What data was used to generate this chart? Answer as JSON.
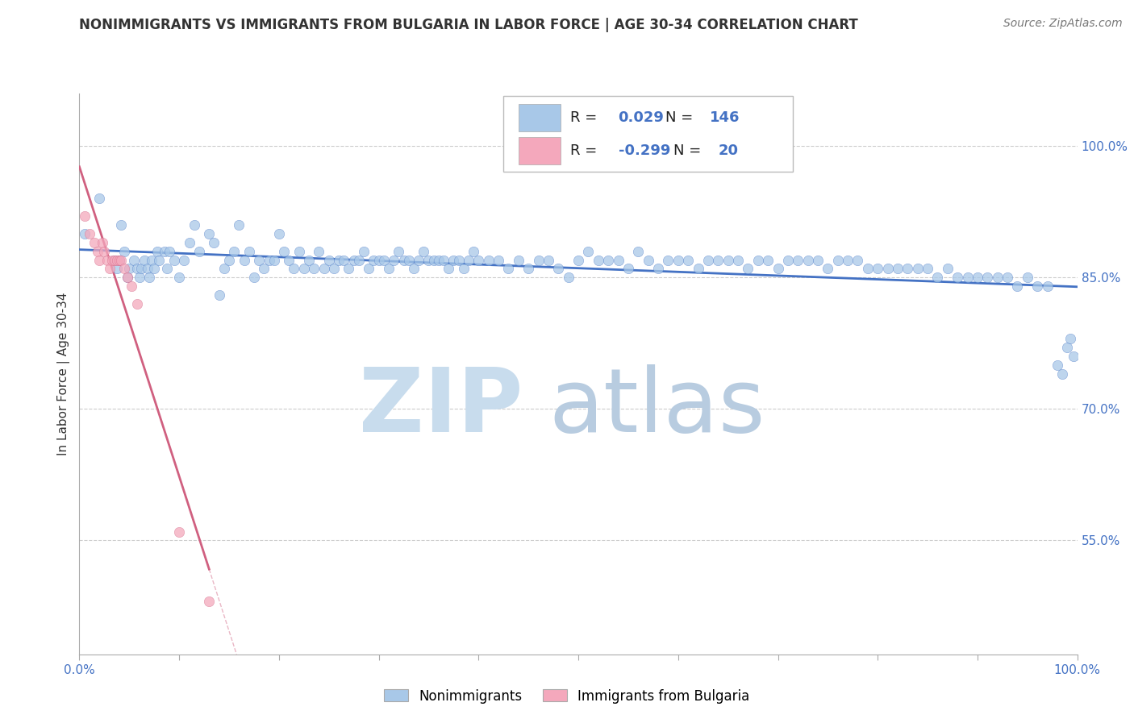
{
  "title": "NONIMMIGRANTS VS IMMIGRANTS FROM BULGARIA IN LABOR FORCE | AGE 30-34 CORRELATION CHART",
  "source": "Source: ZipAtlas.com",
  "ylabel": "In Labor Force | Age 30-34",
  "xlim": [
    0.0,
    1.0
  ],
  "ylim": [
    0.42,
    1.06
  ],
  "yticks": [
    0.55,
    0.7,
    0.85,
    1.0
  ],
  "ytick_labels": [
    "55.0%",
    "70.0%",
    "85.0%",
    "100.0%"
  ],
  "xtick_left_label": "0.0%",
  "xtick_right_label": "100.0%",
  "nonimm_R": 0.029,
  "nonimm_N": 146,
  "imm_R": -0.299,
  "imm_N": 20,
  "nonimm_color": "#a8c8e8",
  "nonimm_line_color": "#4472c4",
  "imm_color": "#f4a8bc",
  "imm_line_color": "#d06080",
  "watermark_zip_color": "#c8dced",
  "watermark_atlas_color": "#b8cce0",
  "background_color": "#ffffff",
  "legend_box_color": "#e8e8e8",
  "nonimm_x": [
    0.005,
    0.02,
    0.035,
    0.038,
    0.04,
    0.042,
    0.045,
    0.048,
    0.05,
    0.055,
    0.058,
    0.06,
    0.062,
    0.065,
    0.068,
    0.07,
    0.072,
    0.075,
    0.078,
    0.08,
    0.085,
    0.088,
    0.09,
    0.095,
    0.1,
    0.105,
    0.11,
    0.115,
    0.12,
    0.13,
    0.135,
    0.14,
    0.145,
    0.15,
    0.155,
    0.16,
    0.165,
    0.17,
    0.175,
    0.18,
    0.185,
    0.19,
    0.195,
    0.2,
    0.205,
    0.21,
    0.215,
    0.22,
    0.225,
    0.23,
    0.235,
    0.24,
    0.245,
    0.25,
    0.255,
    0.26,
    0.265,
    0.27,
    0.275,
    0.28,
    0.285,
    0.29,
    0.295,
    0.3,
    0.305,
    0.31,
    0.315,
    0.32,
    0.325,
    0.33,
    0.335,
    0.34,
    0.345,
    0.35,
    0.355,
    0.36,
    0.365,
    0.37,
    0.375,
    0.38,
    0.385,
    0.39,
    0.395,
    0.4,
    0.41,
    0.42,
    0.43,
    0.44,
    0.45,
    0.46,
    0.47,
    0.48,
    0.49,
    0.5,
    0.51,
    0.52,
    0.53,
    0.54,
    0.55,
    0.56,
    0.57,
    0.58,
    0.59,
    0.6,
    0.61,
    0.62,
    0.63,
    0.64,
    0.65,
    0.66,
    0.67,
    0.68,
    0.69,
    0.7,
    0.71,
    0.72,
    0.73,
    0.74,
    0.75,
    0.76,
    0.77,
    0.78,
    0.79,
    0.8,
    0.81,
    0.82,
    0.83,
    0.84,
    0.85,
    0.86,
    0.87,
    0.88,
    0.89,
    0.9,
    0.91,
    0.92,
    0.93,
    0.94,
    0.95,
    0.96,
    0.97,
    0.98,
    0.985,
    0.99,
    0.993,
    0.996
  ],
  "nonimm_y": [
    0.9,
    0.94,
    0.87,
    0.86,
    0.87,
    0.91,
    0.88,
    0.85,
    0.86,
    0.87,
    0.86,
    0.85,
    0.86,
    0.87,
    0.86,
    0.85,
    0.87,
    0.86,
    0.88,
    0.87,
    0.88,
    0.86,
    0.88,
    0.87,
    0.85,
    0.87,
    0.89,
    0.91,
    0.88,
    0.9,
    0.89,
    0.83,
    0.86,
    0.87,
    0.88,
    0.91,
    0.87,
    0.88,
    0.85,
    0.87,
    0.86,
    0.87,
    0.87,
    0.9,
    0.88,
    0.87,
    0.86,
    0.88,
    0.86,
    0.87,
    0.86,
    0.88,
    0.86,
    0.87,
    0.86,
    0.87,
    0.87,
    0.86,
    0.87,
    0.87,
    0.88,
    0.86,
    0.87,
    0.87,
    0.87,
    0.86,
    0.87,
    0.88,
    0.87,
    0.87,
    0.86,
    0.87,
    0.88,
    0.87,
    0.87,
    0.87,
    0.87,
    0.86,
    0.87,
    0.87,
    0.86,
    0.87,
    0.88,
    0.87,
    0.87,
    0.87,
    0.86,
    0.87,
    0.86,
    0.87,
    0.87,
    0.86,
    0.85,
    0.87,
    0.88,
    0.87,
    0.87,
    0.87,
    0.86,
    0.88,
    0.87,
    0.86,
    0.87,
    0.87,
    0.87,
    0.86,
    0.87,
    0.87,
    0.87,
    0.87,
    0.86,
    0.87,
    0.87,
    0.86,
    0.87,
    0.87,
    0.87,
    0.87,
    0.86,
    0.87,
    0.87,
    0.87,
    0.86,
    0.86,
    0.86,
    0.86,
    0.86,
    0.86,
    0.86,
    0.85,
    0.86,
    0.85,
    0.85,
    0.85,
    0.85,
    0.85,
    0.85,
    0.84,
    0.85,
    0.84,
    0.84,
    0.75,
    0.74,
    0.77,
    0.78,
    0.76
  ],
  "imm_x": [
    0.005,
    0.01,
    0.015,
    0.018,
    0.02,
    0.023,
    0.025,
    0.028,
    0.03,
    0.033,
    0.035,
    0.038,
    0.04,
    0.042,
    0.045,
    0.048,
    0.052,
    0.058,
    0.1,
    0.13
  ],
  "imm_y": [
    0.92,
    0.9,
    0.89,
    0.88,
    0.87,
    0.89,
    0.88,
    0.87,
    0.86,
    0.87,
    0.87,
    0.87,
    0.87,
    0.87,
    0.86,
    0.85,
    0.84,
    0.82,
    0.56,
    0.48
  ]
}
